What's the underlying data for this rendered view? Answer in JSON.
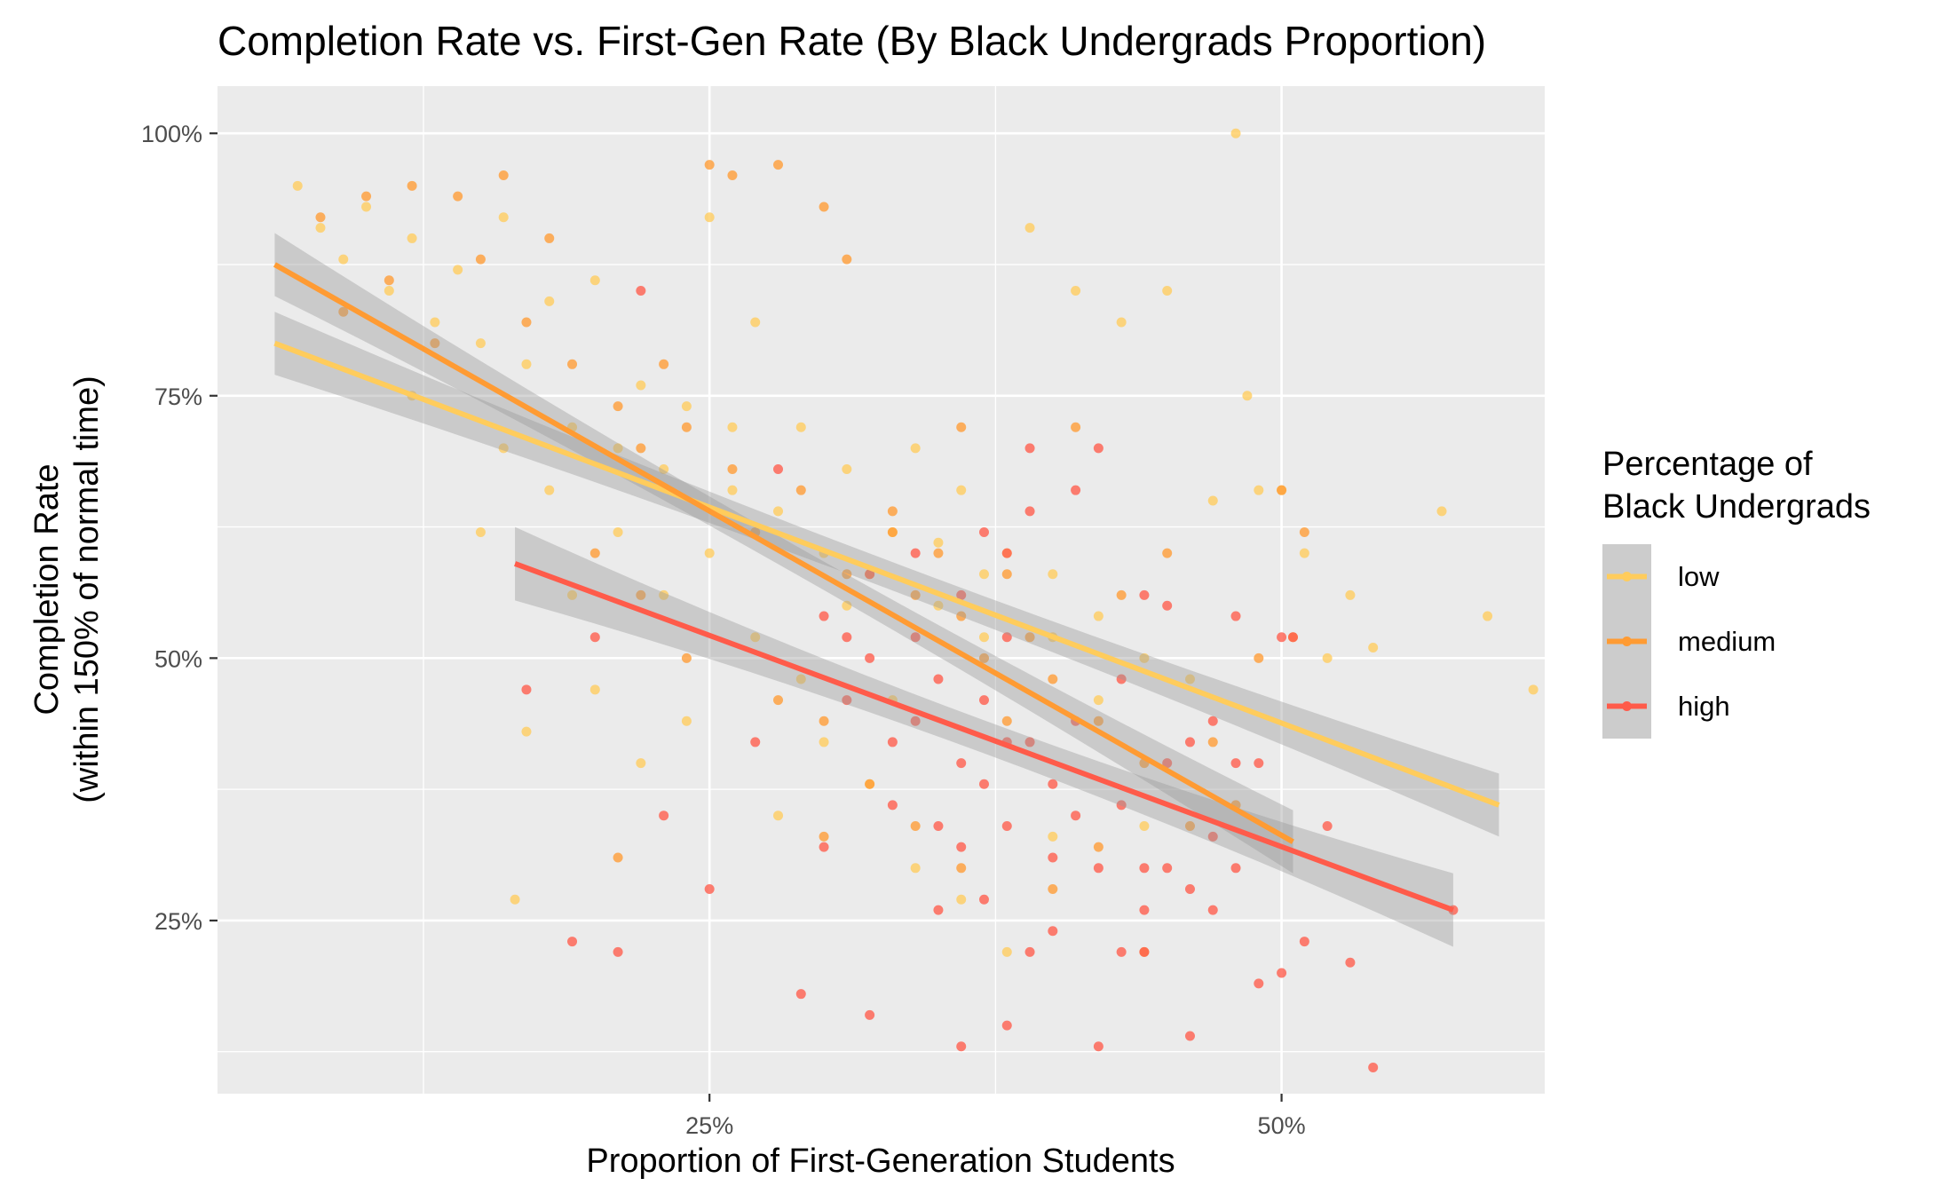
{
  "chart_data": {
    "type": "scatter",
    "title": "Completion Rate vs. First-Gen Rate (By Black Undergrads Proportion)",
    "xlabel": "Proportion of First-Generation Students",
    "ylabel_lines": [
      "Completion Rate",
      "(within 150% of normal time)"
    ],
    "xlim": [
      0.035,
      0.615
    ],
    "ylim": [
      0.085,
      1.045
    ],
    "x_ticks": [
      0.25,
      0.5
    ],
    "x_tick_labels": [
      "25%",
      "50%"
    ],
    "y_ticks": [
      0.25,
      0.5,
      0.75,
      1.0
    ],
    "y_tick_labels": [
      "25%",
      "50%",
      "75%",
      "100%"
    ],
    "grid": true,
    "legend": {
      "title_lines": [
        "Percentage of",
        "Black Undergrads"
      ],
      "position": "right"
    },
    "series": [
      {
        "name": "low",
        "color": "#FFCC5C",
        "x_range": [
          0.06,
          0.595
        ],
        "trend": {
          "type": "linear",
          "start": [
            0.06,
            0.8
          ],
          "end": [
            0.595,
            0.36
          ],
          "band": 0.03
        },
        "points": [
          [
            0.07,
            0.95
          ],
          [
            0.08,
            0.91
          ],
          [
            0.09,
            0.88
          ],
          [
            0.1,
            0.93
          ],
          [
            0.11,
            0.85
          ],
          [
            0.12,
            0.9
          ],
          [
            0.13,
            0.82
          ],
          [
            0.14,
            0.87
          ],
          [
            0.15,
            0.8
          ],
          [
            0.16,
            0.92
          ],
          [
            0.17,
            0.78
          ],
          [
            0.18,
            0.84
          ],
          [
            0.19,
            0.72
          ],
          [
            0.2,
            0.86
          ],
          [
            0.21,
            0.7
          ],
          [
            0.22,
            0.76
          ],
          [
            0.23,
            0.68
          ],
          [
            0.24,
            0.74
          ],
          [
            0.25,
            0.92
          ],
          [
            0.26,
            0.66
          ],
          [
            0.27,
            0.82
          ],
          [
            0.28,
            0.64
          ],
          [
            0.29,
            0.72
          ],
          [
            0.3,
            0.6
          ],
          [
            0.31,
            0.68
          ],
          [
            0.32,
            0.58
          ],
          [
            0.33,
            0.62
          ],
          [
            0.34,
            0.7
          ],
          [
            0.35,
            0.55
          ],
          [
            0.36,
            0.66
          ],
          [
            0.37,
            0.52
          ],
          [
            0.38,
            0.6
          ],
          [
            0.39,
            0.91
          ],
          [
            0.4,
            0.58
          ],
          [
            0.41,
            0.85
          ],
          [
            0.42,
            0.54
          ],
          [
            0.43,
            0.82
          ],
          [
            0.44,
            0.5
          ],
          [
            0.45,
            0.85
          ],
          [
            0.46,
            0.48
          ],
          [
            0.47,
            0.65
          ],
          [
            0.48,
            1.0
          ],
          [
            0.485,
            0.75
          ],
          [
            0.49,
            0.66
          ],
          [
            0.5,
            0.66
          ],
          [
            0.51,
            0.6
          ],
          [
            0.52,
            0.5
          ],
          [
            0.53,
            0.56
          ],
          [
            0.54,
            0.51
          ],
          [
            0.57,
            0.64
          ],
          [
            0.59,
            0.54
          ],
          [
            0.61,
            0.47
          ],
          [
            0.12,
            0.75
          ],
          [
            0.16,
            0.7
          ],
          [
            0.18,
            0.66
          ],
          [
            0.21,
            0.62
          ],
          [
            0.23,
            0.56
          ],
          [
            0.25,
            0.6
          ],
          [
            0.26,
            0.72
          ],
          [
            0.27,
            0.52
          ],
          [
            0.29,
            0.48
          ],
          [
            0.31,
            0.55
          ],
          [
            0.33,
            0.46
          ],
          [
            0.35,
            0.61
          ],
          [
            0.37,
            0.58
          ],
          [
            0.4,
            0.52
          ],
          [
            0.42,
            0.46
          ],
          [
            0.15,
            0.62
          ],
          [
            0.19,
            0.56
          ],
          [
            0.2,
            0.47
          ],
          [
            0.22,
            0.4
          ],
          [
            0.24,
            0.44
          ],
          [
            0.28,
            0.35
          ],
          [
            0.3,
            0.42
          ],
          [
            0.32,
            0.38
          ],
          [
            0.34,
            0.3
          ],
          [
            0.36,
            0.27
          ],
          [
            0.38,
            0.22
          ],
          [
            0.4,
            0.33
          ],
          [
            0.44,
            0.34
          ],
          [
            0.17,
            0.43
          ],
          [
            0.165,
            0.27
          ]
        ]
      },
      {
        "name": "medium",
        "color": "#FF9B33",
        "x_range": [
          0.06,
          0.505
        ],
        "trend": {
          "type": "linear",
          "start": [
            0.06,
            0.875
          ],
          "end": [
            0.505,
            0.325
          ],
          "band": 0.03
        },
        "points": [
          [
            0.08,
            0.92
          ],
          [
            0.1,
            0.94
          ],
          [
            0.12,
            0.95
          ],
          [
            0.14,
            0.94
          ],
          [
            0.16,
            0.96
          ],
          [
            0.18,
            0.9
          ],
          [
            0.09,
            0.83
          ],
          [
            0.11,
            0.86
          ],
          [
            0.13,
            0.8
          ],
          [
            0.15,
            0.88
          ],
          [
            0.17,
            0.82
          ],
          [
            0.19,
            0.78
          ],
          [
            0.21,
            0.74
          ],
          [
            0.23,
            0.78
          ],
          [
            0.25,
            0.97
          ],
          [
            0.26,
            0.96
          ],
          [
            0.28,
            0.97
          ],
          [
            0.3,
            0.93
          ],
          [
            0.31,
            0.88
          ],
          [
            0.22,
            0.7
          ],
          [
            0.24,
            0.72
          ],
          [
            0.26,
            0.68
          ],
          [
            0.27,
            0.62
          ],
          [
            0.29,
            0.66
          ],
          [
            0.31,
            0.58
          ],
          [
            0.33,
            0.64
          ],
          [
            0.34,
            0.56
          ],
          [
            0.35,
            0.6
          ],
          [
            0.36,
            0.54
          ],
          [
            0.37,
            0.5
          ],
          [
            0.38,
            0.58
          ],
          [
            0.39,
            0.52
          ],
          [
            0.4,
            0.48
          ],
          [
            0.41,
            0.72
          ],
          [
            0.42,
            0.44
          ],
          [
            0.43,
            0.56
          ],
          [
            0.44,
            0.4
          ],
          [
            0.45,
            0.6
          ],
          [
            0.46,
            0.34
          ],
          [
            0.47,
            0.42
          ],
          [
            0.48,
            0.36
          ],
          [
            0.49,
            0.5
          ],
          [
            0.5,
            0.66
          ],
          [
            0.51,
            0.62
          ],
          [
            0.505,
            0.52
          ],
          [
            0.2,
            0.6
          ],
          [
            0.22,
            0.56
          ],
          [
            0.24,
            0.5
          ],
          [
            0.28,
            0.46
          ],
          [
            0.3,
            0.44
          ],
          [
            0.32,
            0.38
          ],
          [
            0.34,
            0.34
          ],
          [
            0.36,
            0.3
          ],
          [
            0.38,
            0.44
          ],
          [
            0.4,
            0.28
          ],
          [
            0.42,
            0.32
          ],
          [
            0.44,
            0.22
          ],
          [
            0.21,
            0.31
          ],
          [
            0.3,
            0.33
          ],
          [
            0.33,
            0.62
          ],
          [
            0.36,
            0.72
          ]
        ]
      },
      {
        "name": "high",
        "color": "#FF5B4A",
        "x_range": [
          0.165,
          0.575
        ],
        "trend": {
          "type": "linear",
          "start": [
            0.165,
            0.59
          ],
          "end": [
            0.575,
            0.26
          ],
          "band": 0.035
        },
        "points": [
          [
            0.17,
            0.47
          ],
          [
            0.19,
            0.23
          ],
          [
            0.2,
            0.52
          ],
          [
            0.21,
            0.22
          ],
          [
            0.22,
            0.85
          ],
          [
            0.23,
            0.35
          ],
          [
            0.25,
            0.28
          ],
          [
            0.27,
            0.42
          ],
          [
            0.28,
            0.68
          ],
          [
            0.29,
            0.18
          ],
          [
            0.3,
            0.32
          ],
          [
            0.31,
            0.52
          ],
          [
            0.32,
            0.16
          ],
          [
            0.33,
            0.42
          ],
          [
            0.34,
            0.6
          ],
          [
            0.35,
            0.26
          ],
          [
            0.36,
            0.13
          ],
          [
            0.37,
            0.38
          ],
          [
            0.38,
            0.52
          ],
          [
            0.38,
            0.15
          ],
          [
            0.39,
            0.7
          ],
          [
            0.4,
            0.24
          ],
          [
            0.41,
            0.66
          ],
          [
            0.42,
            0.13
          ],
          [
            0.43,
            0.48
          ],
          [
            0.44,
            0.22
          ],
          [
            0.45,
            0.55
          ],
          [
            0.46,
            0.14
          ],
          [
            0.47,
            0.26
          ],
          [
            0.48,
            0.54
          ],
          [
            0.49,
            0.19
          ],
          [
            0.5,
            0.52
          ],
          [
            0.51,
            0.23
          ],
          [
            0.52,
            0.34
          ],
          [
            0.53,
            0.21
          ],
          [
            0.54,
            0.11
          ],
          [
            0.575,
            0.26
          ],
          [
            0.31,
            0.46
          ],
          [
            0.32,
            0.5
          ],
          [
            0.33,
            0.36
          ],
          [
            0.34,
            0.44
          ],
          [
            0.35,
            0.48
          ],
          [
            0.36,
            0.4
          ],
          [
            0.37,
            0.46
          ],
          [
            0.38,
            0.34
          ],
          [
            0.39,
            0.42
          ],
          [
            0.4,
            0.38
          ],
          [
            0.41,
            0.44
          ],
          [
            0.42,
            0.3
          ],
          [
            0.43,
            0.36
          ],
          [
            0.44,
            0.3
          ],
          [
            0.45,
            0.4
          ],
          [
            0.46,
            0.28
          ],
          [
            0.47,
            0.33
          ],
          [
            0.48,
            0.3
          ],
          [
            0.49,
            0.4
          ],
          [
            0.5,
            0.2
          ],
          [
            0.505,
            0.52
          ],
          [
            0.3,
            0.54
          ],
          [
            0.32,
            0.58
          ],
          [
            0.34,
            0.52
          ],
          [
            0.36,
            0.56
          ],
          [
            0.37,
            0.62
          ],
          [
            0.38,
            0.6
          ],
          [
            0.39,
            0.64
          ],
          [
            0.42,
            0.7
          ],
          [
            0.44,
            0.56
          ],
          [
            0.35,
            0.34
          ],
          [
            0.36,
            0.32
          ],
          [
            0.37,
            0.27
          ],
          [
            0.38,
            0.42
          ],
          [
            0.39,
            0.22
          ],
          [
            0.4,
            0.31
          ],
          [
            0.41,
            0.35
          ],
          [
            0.43,
            0.22
          ],
          [
            0.44,
            0.26
          ],
          [
            0.45,
            0.3
          ],
          [
            0.46,
            0.42
          ],
          [
            0.47,
            0.44
          ],
          [
            0.48,
            0.4
          ]
        ]
      }
    ]
  }
}
